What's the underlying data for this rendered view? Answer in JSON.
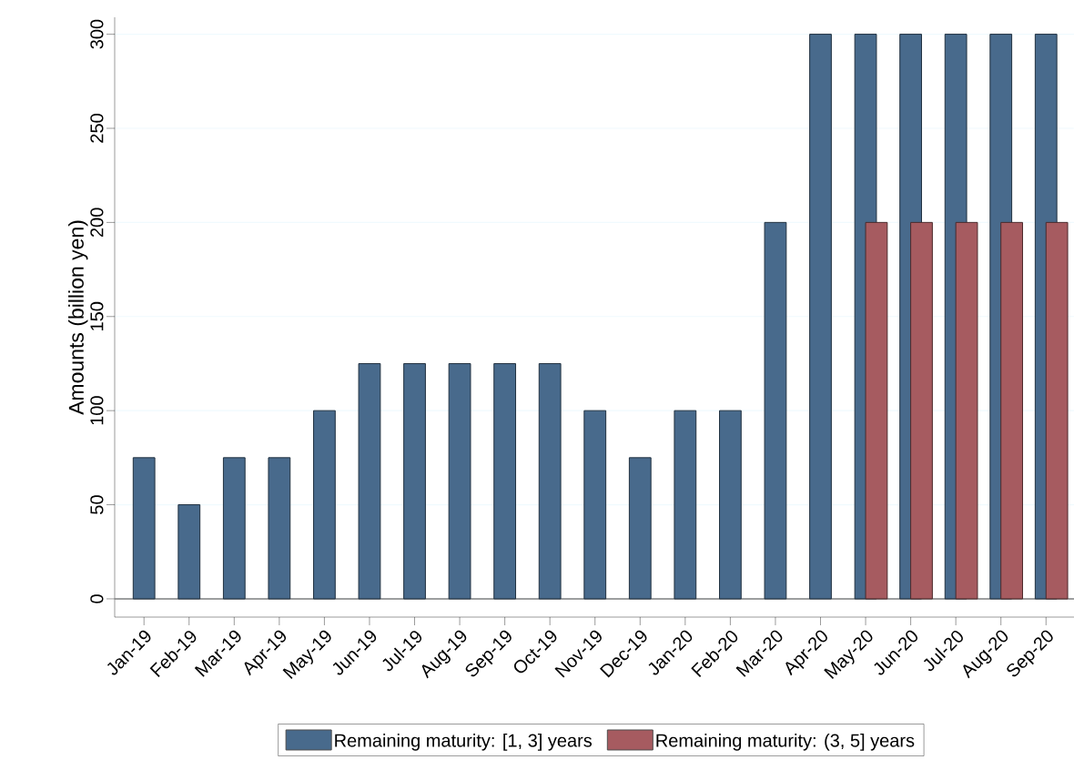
{
  "chart_data": {
    "type": "bar",
    "ylabel": "Amounts (billion yen)",
    "categories": [
      "Jan-19",
      "Feb-19",
      "Mar-19",
      "Apr-19",
      "May-19",
      "Jun-19",
      "Jul-19",
      "Aug-19",
      "Sep-19",
      "Oct-19",
      "Nov-19",
      "Dec-19",
      "Jan-20",
      "Feb-20",
      "Mar-20",
      "Apr-20",
      "May-20",
      "Jun-20",
      "Jul-20",
      "Aug-20",
      "Sep-20"
    ],
    "series": [
      {
        "name": "Remaining maturity: [1, 3] years",
        "color": "#486a8c",
        "values": [
          75,
          50,
          75,
          75,
          100,
          125,
          125,
          125,
          125,
          125,
          100,
          75,
          100,
          100,
          200,
          300,
          300,
          300,
          300,
          300,
          300
        ]
      },
      {
        "name": "Remaining maturity: (3, 5] years",
        "color": "#a65b60",
        "values": [
          null,
          null,
          null,
          null,
          null,
          null,
          null,
          null,
          null,
          null,
          null,
          null,
          null,
          null,
          null,
          null,
          200,
          200,
          200,
          200,
          200
        ]
      }
    ],
    "ylim": [
      -9.7,
      309
    ],
    "yticks": [
      0,
      50,
      100,
      150,
      200,
      250,
      300
    ],
    "grid": "y",
    "legend": "bottom",
    "ref_lines": [
      {
        "axis": "y",
        "value": 0,
        "color": "#7f7f7f"
      }
    ]
  }
}
